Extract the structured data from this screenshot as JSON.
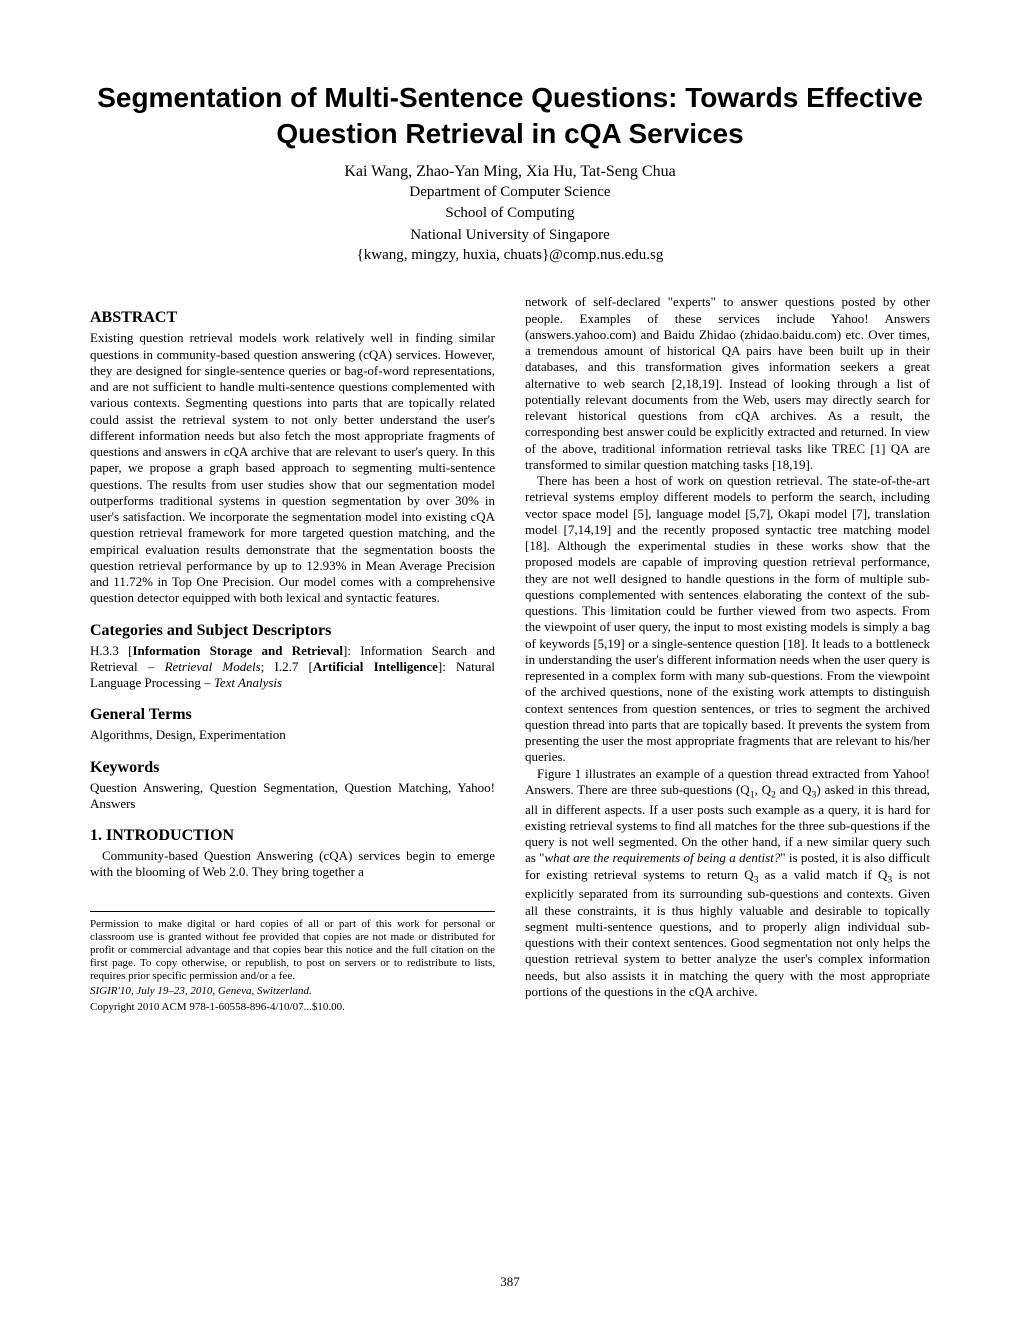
{
  "title": "Segmentation of Multi-Sentence Questions: Towards Effective Question Retrieval in cQA Services",
  "authors": "Kai Wang, Zhao-Yan Ming, Xia Hu, Tat-Seng Chua",
  "affiliation_lines": [
    "Department of Computer Science",
    "School of Computing",
    "National University of Singapore"
  ],
  "emails": "{kwang, mingzy, huxia, chuats}@comp.nus.edu.sg",
  "abstract_heading": "ABSTRACT",
  "abstract_text": "Existing question retrieval models work relatively well in finding similar questions in community-based question answering (cQA) services. However, they are designed for single-sentence queries or bag-of-word representations, and are not sufficient to handle multi-sentence questions complemented with various contexts. Segmenting questions into parts that are topically related could assist the retrieval system to not only better understand the user's different information needs but also fetch the most appropriate fragments of questions and answers in cQA archive that are relevant to user's query. In this paper, we propose a graph based approach to segmenting multi-sentence questions. The results from user studies show that our segmentation model outperforms traditional systems in question segmentation by over 30% in user's satisfaction. We incorporate the segmentation model into existing cQA question retrieval framework for more targeted question matching, and the empirical evaluation results demonstrate that the segmentation boosts the question retrieval performance by up to 12.93% in Mean Average Precision and 11.72% in Top One Precision. Our model comes with a comprehensive question detector equipped with both lexical and syntactic features.",
  "categories_heading": "Categories and Subject Descriptors",
  "categories_html": "H.3.3 [<b>Information Storage and Retrieval</b>]: Information Search and Retrieval – <i>Retrieval Models</i>; I.2.7 [<b>Artificial Intelligence</b>]: Natural Language Processing – <i>Text Analysis</i>",
  "general_terms_heading": "General Terms",
  "general_terms_text": "Algorithms, Design, Experimentation",
  "keywords_heading": "Keywords",
  "keywords_text": "Question Answering, Question Segmentation, Question Matching, Yahoo! Answers",
  "intro_heading": "1.  INTRODUCTION",
  "intro_p1": "Community-based Question Answering (cQA) services begin to emerge with the blooming of Web 2.0. They bring together a",
  "right_p1_html": "network of self-declared \"experts\" to answer questions posted by other people. Examples of these services include Yahoo! Answers (answers.yahoo.com) and Baidu Zhidao (zhidao.baidu.com) etc. Over times, a tremendous amount of historical QA pairs have been built up in their databases, and this transformation gives information seekers a great alternative to web search [2,18,19]. Instead of looking through a list of potentially relevant documents from the Web, users may directly search for relevant historical questions from cQA archives. As a result, the corresponding best answer could be explicitly extracted and returned. In view of the above, traditional information retrieval tasks like TREC [1] QA are transformed to similar question matching tasks [18,19].",
  "right_p2_html": "There has been a host of work on question retrieval. The state-of-the-art retrieval systems employ different models to perform the search, including vector space model [5], language model [5,7], Okapi model [7], translation model [7,14,19] and the recently proposed syntactic tree matching model [18]. Although the experimental studies in these works show that the proposed models are capable of improving question retrieval performance, they are not well designed to handle questions in the form of multiple sub-questions complemented with sentences elaborating the context of the sub-questions. This limitation could be further viewed from two aspects. From the viewpoint of user query, the input to most existing models is simply a bag of keywords [5,19] or a single-sentence question [18]. It leads to a bottleneck in understanding the user's different information needs when the user query is represented in a complex form with many sub-questions. From the viewpoint of the archived questions, none of the existing work attempts to distinguish context sentences from question sentences, or tries to segment the archived question thread into parts that are topically based. It prevents the system from presenting the user the most appropriate fragments that are relevant to his/her queries.",
  "right_p3_html": "Figure 1 illustrates an example of a question thread extracted from Yahoo! Answers. There are three sub-questions (Q<sub>1</sub>, Q<sub>2</sub> and Q<sub>3</sub>) asked in this thread, all in different aspects. If a user posts such example as a query, it is hard for existing retrieval systems to find all matches for the three sub-questions if the query is not well segmented. On the other hand, if a new similar query such as \"<i>what are the requirements of being a dentist?</i>\" is posted, it is also difficult for existing retrieval systems to return Q<sub>3</sub> as a valid match if Q<sub>3</sub> is not explicitly separated from its surrounding sub-questions and contexts. Given all these constraints, it is thus highly valuable and desirable to topically segment multi-sentence questions, and to properly align individual sub-questions with their context sentences. Good segmentation not only helps the question retrieval system to better analyze the user's complex information needs, but also assists it in matching the query with the most appropriate portions of the questions in the cQA archive.",
  "permission_text": "Permission to make digital or hard copies of all or part of this work for personal or classroom use is granted without fee provided that copies are not made or distributed for profit or commercial advantage and that copies bear this notice and the full citation on the first page. To copy otherwise, or republish, to post on servers or to redistribute to lists, requires prior specific permission and/or a fee.",
  "conference_line": "SIGIR'10, July 19–23, 2010, Geneva, Switzerland.",
  "copyright_line": "Copyright 2010 ACM  978-1-60558-896-4/10/07...$10.00.",
  "page_number": "387"
}
